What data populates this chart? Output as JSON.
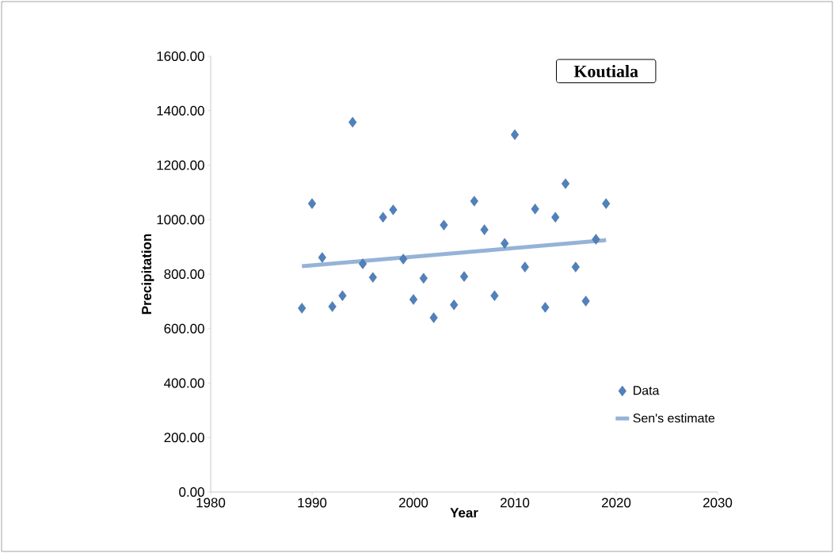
{
  "chart_data": {
    "type": "scatter",
    "title": "Koutiala",
    "xlabel": "Year",
    "ylabel": "Precipitation",
    "x": [
      1989,
      1990,
      1991,
      1992,
      1993,
      1994,
      1995,
      1996,
      1997,
      1998,
      1999,
      2000,
      2001,
      2002,
      2003,
      2004,
      2005,
      2006,
      2007,
      2008,
      2009,
      2010,
      2011,
      2012,
      2013,
      2014,
      2015,
      2016,
      2017,
      2018,
      2019
    ],
    "series": [
      {
        "name": "Data",
        "color": "#4f81bd",
        "marker": "diamond",
        "values": [
          675,
          1059,
          861,
          681,
          721,
          1358,
          838,
          788,
          1009,
          1036,
          855,
          707,
          785,
          640,
          980,
          687,
          791,
          1068,
          963,
          721,
          913,
          1312,
          826,
          1039,
          678,
          1009,
          1132,
          826,
          701,
          928,
          1059
        ]
      },
      {
        "name": "Sen's estimate",
        "type": "line",
        "color": "#95b3d7",
        "marker": "none",
        "x": [
          1989,
          2019
        ],
        "values": [
          829,
          925
        ]
      }
    ],
    "xlim": [
      1980,
      2030
    ],
    "ylim": [
      0,
      1600
    ],
    "xticks": [
      1980,
      1990,
      2000,
      2010,
      2020,
      2030
    ],
    "yticks": [
      {
        "value": 0,
        "label": "0.00"
      },
      {
        "value": 200,
        "label": "200.00"
      },
      {
        "value": 400,
        "label": "400.00"
      },
      {
        "value": 600,
        "label": "600.00"
      },
      {
        "value": 800,
        "label": "800.00"
      },
      {
        "value": 1000,
        "label": "1000.00"
      },
      {
        "value": 1200,
        "label": "1200.00"
      },
      {
        "value": 1400,
        "label": "1400.00"
      },
      {
        "value": 1600,
        "label": "1600.00"
      }
    ],
    "legend": "right",
    "grid": false
  }
}
